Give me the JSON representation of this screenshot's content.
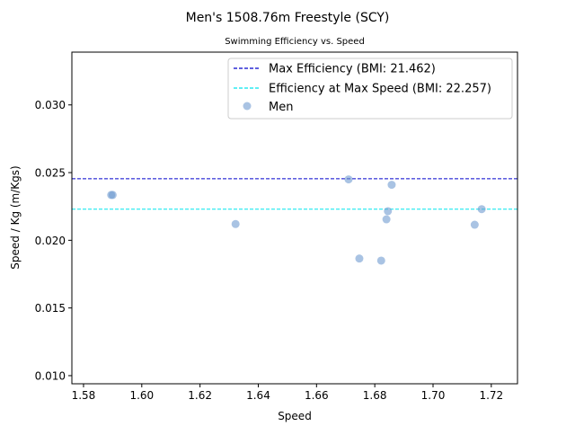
{
  "chart_data": {
    "type": "scatter",
    "title": "Men's 1508.76m Freestyle (SCY)",
    "subtitle": "Swimming Efficiency vs. Speed",
    "xlabel": "Speed",
    "ylabel": "Speed / Kg (m/Kgs)",
    "xlim": [
      1.576,
      1.729
    ],
    "ylim": [
      0.0094,
      0.0339
    ],
    "xticks": [
      "1.58",
      "1.60",
      "1.62",
      "1.64",
      "1.66",
      "1.68",
      "1.70",
      "1.72"
    ],
    "xtick_values": [
      1.58,
      1.6,
      1.62,
      1.64,
      1.66,
      1.68,
      1.7,
      1.72
    ],
    "yticks": [
      "0.010",
      "0.015",
      "0.020",
      "0.025",
      "0.030"
    ],
    "ytick_values": [
      0.01,
      0.015,
      0.02,
      0.025,
      0.03
    ],
    "grid": false,
    "legend_position": "top-right",
    "series": [
      {
        "name": "Men",
        "kind": "scatter",
        "color": "#6f9bd1",
        "points": [
          {
            "x": 1.5895,
            "y": 0.02335
          },
          {
            "x": 1.59,
            "y": 0.02335
          },
          {
            "x": 1.6322,
            "y": 0.0212
          },
          {
            "x": 1.671,
            "y": 0.0245
          },
          {
            "x": 1.6747,
            "y": 0.01865
          },
          {
            "x": 1.6822,
            "y": 0.0185
          },
          {
            "x": 1.684,
            "y": 0.02155
          },
          {
            "x": 1.6845,
            "y": 0.02215
          },
          {
            "x": 1.6858,
            "y": 0.0241
          },
          {
            "x": 1.7143,
            "y": 0.02115
          },
          {
            "x": 1.7167,
            "y": 0.0223
          }
        ]
      }
    ],
    "reference_lines": [
      {
        "name": "Max Efficiency (BMI: 21.462)",
        "y": 0.02455,
        "color": "#0000cc",
        "style": "dashed"
      },
      {
        "name": "Efficiency at Max Speed (BMI: 22.257)",
        "y": 0.0223,
        "color": "#00e5ee",
        "style": "dashed"
      }
    ],
    "legend": [
      "Max Efficiency (BMI: 21.462)",
      "Efficiency at Max Speed (BMI: 22.257)",
      "Men"
    ]
  }
}
